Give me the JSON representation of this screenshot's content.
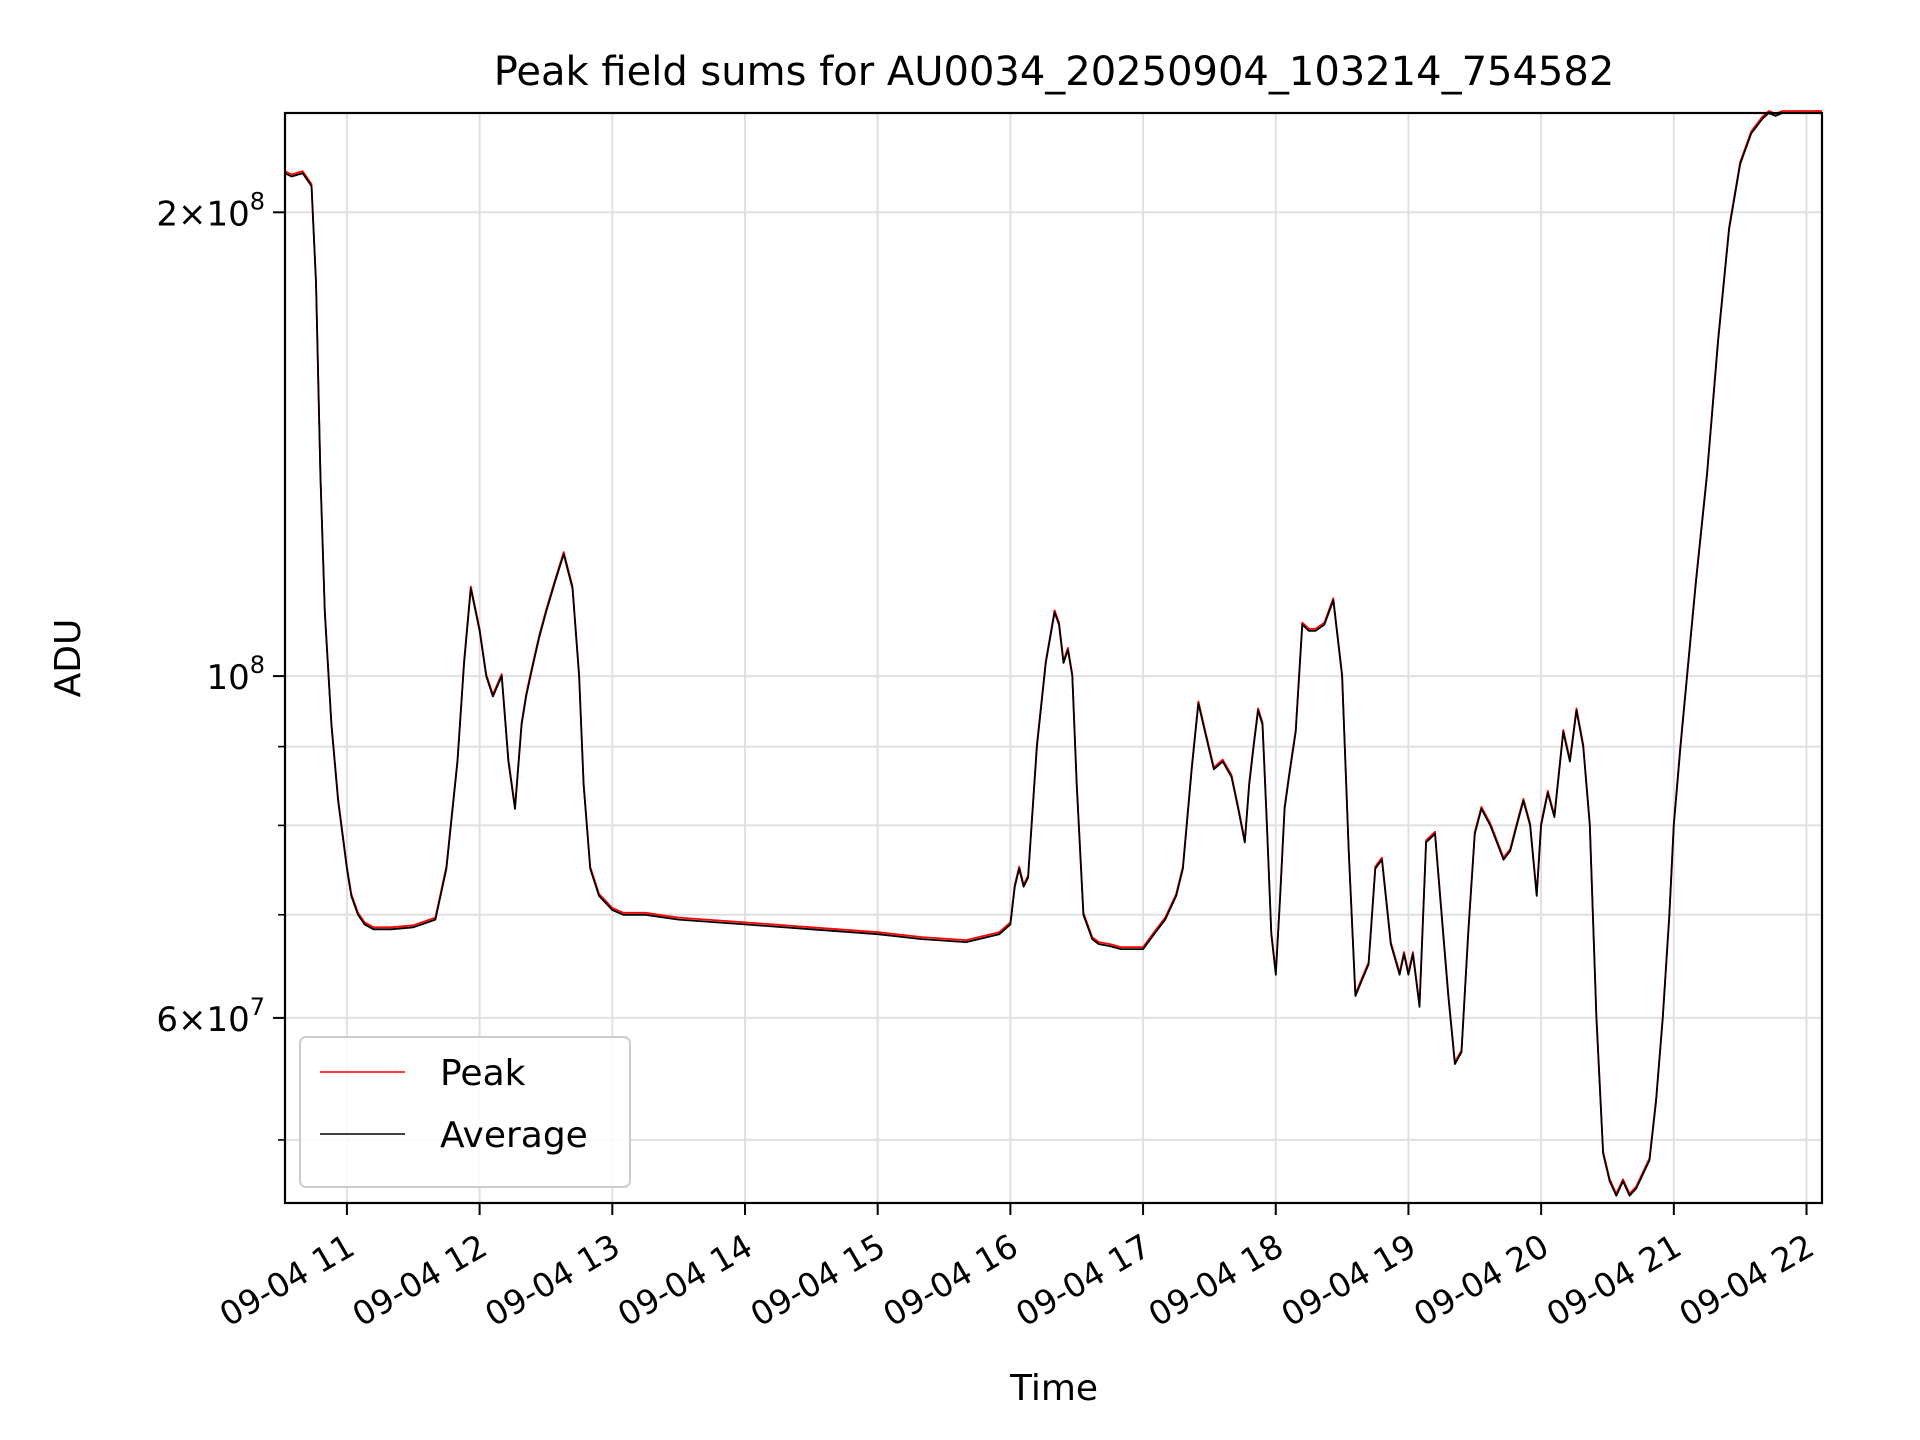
{
  "chart_data": {
    "type": "line",
    "title": "Peak field sums for AU0034_20250904_103214_754582",
    "xlabel": "Time",
    "ylabel": "ADU",
    "yscale": "log",
    "grid": true,
    "legend_position": "lower-left",
    "xlim": [
      "2025-09-04 10:32",
      "2025-09-04 22:07"
    ],
    "ylim": [
      45500000,
      232000000
    ],
    "x_ticks": [
      {
        "t": "2025-09-04 11:00",
        "label": "09-04 11"
      },
      {
        "t": "2025-09-04 12:00",
        "label": "09-04 12"
      },
      {
        "t": "2025-09-04 13:00",
        "label": "09-04 13"
      },
      {
        "t": "2025-09-04 14:00",
        "label": "09-04 14"
      },
      {
        "t": "2025-09-04 15:00",
        "label": "09-04 15"
      },
      {
        "t": "2025-09-04 16:00",
        "label": "09-04 16"
      },
      {
        "t": "2025-09-04 17:00",
        "label": "09-04 17"
      },
      {
        "t": "2025-09-04 18:00",
        "label": "09-04 18"
      },
      {
        "t": "2025-09-04 19:00",
        "label": "09-04 19"
      },
      {
        "t": "2025-09-04 20:00",
        "label": "09-04 20"
      },
      {
        "t": "2025-09-04 21:00",
        "label": "09-04 21"
      },
      {
        "t": "2025-09-04 22:00",
        "label": "09-04 22"
      }
    ],
    "y_major_ticks": [
      {
        "value": 60000000,
        "mantissa": "6",
        "exponent": "7"
      },
      {
        "value": 100000000,
        "mantissa": "",
        "exponent": "8"
      },
      {
        "value": 200000000,
        "mantissa": "2",
        "exponent": "8"
      }
    ],
    "y_minor_ticks": [
      50000000,
      70000000,
      80000000,
      90000000
    ],
    "times_mmss_from_start": [
      "10:32",
      "10:35",
      "10:40",
      "10:44",
      "10:46",
      "10:48",
      "10:50",
      "10:53",
      "10:56",
      "11:00",
      "11:02",
      "11:05",
      "11:08",
      "11:12",
      "11:15",
      "11:20",
      "11:30",
      "11:40",
      "11:45",
      "11:50",
      "11:53",
      "11:56",
      "12:00",
      "12:03",
      "12:06",
      "12:10",
      "12:13",
      "12:16",
      "12:19",
      "12:21",
      "12:23",
      "12:25",
      "12:27",
      "12:30",
      "12:34",
      "12:38",
      "12:42",
      "12:45",
      "12:47",
      "12:50",
      "12:54",
      "12:58",
      "13:00",
      "13:05",
      "13:15",
      "13:30",
      "14:00",
      "14:30",
      "15:00",
      "15:20",
      "15:40",
      "15:55",
      "16:00",
      "16:02",
      "16:04",
      "16:06",
      "16:08",
      "16:12",
      "16:16",
      "16:20",
      "16:22",
      "16:24",
      "16:26",
      "16:28",
      "16:30",
      "16:33",
      "16:37",
      "16:40",
      "16:45",
      "16:50",
      "17:00",
      "17:05",
      "17:10",
      "17:15",
      "17:18",
      "17:22",
      "17:25",
      "17:28",
      "17:32",
      "17:36",
      "17:40",
      "17:43",
      "17:46",
      "17:48",
      "17:50",
      "17:52",
      "17:54",
      "17:56",
      "17:58",
      "18:00",
      "18:02",
      "18:04",
      "18:06",
      "18:09",
      "18:12",
      "18:15",
      "18:18",
      "18:22",
      "18:26",
      "18:30",
      "18:33",
      "18:36",
      "18:39",
      "18:42",
      "18:45",
      "18:48",
      "18:52",
      "18:56",
      "18:58",
      "19:00",
      "19:02",
      "19:05",
      "19:08",
      "19:12",
      "19:15",
      "19:18",
      "19:21",
      "19:24",
      "19:27",
      "19:30",
      "19:33",
      "19:37",
      "19:40",
      "19:43",
      "19:46",
      "19:49",
      "19:52",
      "19:55",
      "19:58",
      "20:00",
      "20:03",
      "20:06",
      "20:10",
      "20:13",
      "20:16",
      "20:19",
      "20:22",
      "20:25",
      "20:28",
      "20:31",
      "20:34",
      "20:37",
      "20:40",
      "20:43",
      "20:46",
      "20:49",
      "20:52",
      "20:55",
      "20:58",
      "21:00",
      "21:03",
      "21:06",
      "21:10",
      "21:15",
      "21:20",
      "21:25",
      "21:30",
      "21:35",
      "21:40",
      "21:43",
      "21:46",
      "21:49",
      "21:52",
      "21:55",
      "21:58",
      "22:00",
      "22:03",
      "22:07"
    ],
    "series": [
      {
        "name": "Average",
        "color": "#000000",
        "values": [
          212000000,
          211000000,
          212000000,
          208000000,
          180000000,
          135000000,
          110000000,
          93000000,
          83000000,
          75000000,
          72000000,
          70000000,
          69000000,
          68500000,
          68500000,
          68500000,
          68700000,
          69500000,
          75000000,
          88000000,
          102000000,
          114000000,
          107000000,
          100000000,
          97000000,
          100000000,
          88000000,
          82000000,
          93000000,
          97000000,
          100000000,
          103000000,
          106000000,
          110000000,
          115000000,
          120000000,
          114000000,
          100000000,
          85000000,
          75000000,
          72000000,
          71000000,
          70500000,
          70000000,
          70000000,
          69500000,
          69000000,
          68500000,
          68000000,
          67500000,
          67200000,
          68000000,
          69000000,
          73000000,
          75000000,
          73000000,
          74000000,
          90000000,
          102000000,
          110000000,
          108000000,
          102000000,
          104000000,
          100000000,
          85000000,
          70000000,
          67500000,
          67000000,
          66800000,
          66500000,
          66500000,
          68000000,
          69500000,
          72000000,
          75000000,
          87000000,
          96000000,
          92000000,
          87000000,
          88000000,
          86000000,
          82000000,
          78000000,
          85000000,
          90000000,
          95000000,
          93000000,
          80000000,
          68000000,
          64000000,
          72000000,
          82000000,
          86000000,
          92000000,
          108000000,
          107000000,
          107000000,
          108000000,
          112000000,
          100000000,
          77000000,
          62000000,
          63500000,
          65000000,
          75000000,
          76000000,
          67000000,
          64000000,
          66000000,
          64000000,
          66000000,
          61000000,
          78000000,
          79000000,
          70000000,
          62000000,
          56000000,
          57000000,
          68000000,
          79000000,
          82000000,
          80000000,
          78000000,
          76000000,
          77000000,
          80000000,
          83000000,
          80000000,
          72000000,
          80000000,
          84000000,
          81000000,
          92000000,
          88000000,
          95000000,
          90000000,
          80000000,
          60000000,
          49000000,
          47000000,
          46000000,
          47000000,
          46000000,
          46500000,
          47500000,
          48500000,
          53000000,
          60000000,
          70000000,
          80000000,
          90000000,
          100000000,
          115000000,
          135000000,
          165000000,
          195000000,
          215000000,
          225000000,
          230000000,
          232000000,
          231000000,
          232000000,
          232000000,
          232000000,
          232000000,
          232000000,
          232000000,
          232000000
        ]
      }
    ]
  }
}
